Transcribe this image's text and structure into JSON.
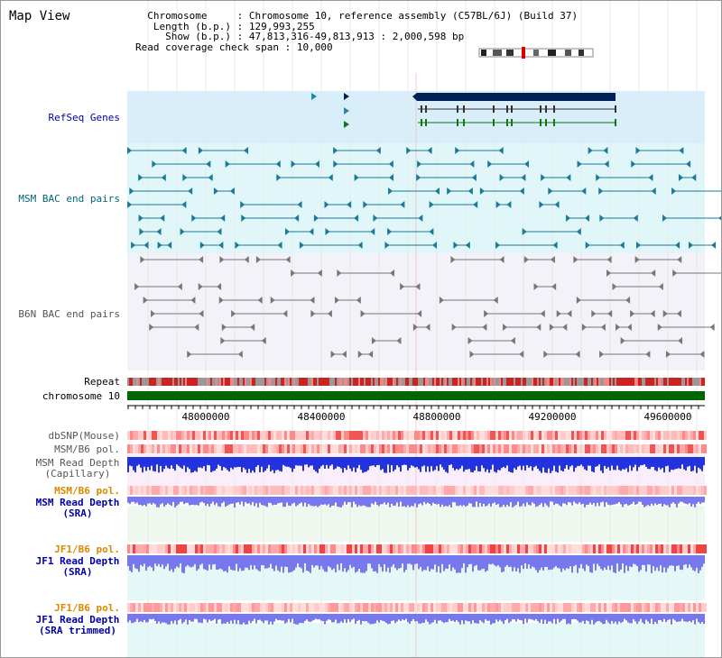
{
  "title": "Map View",
  "info": {
    "chromosome_label": "Chromosome",
    "chromosome_value": "Chromosome 10, reference assembly (C57BL/6J) (Build 37)",
    "length_label": "Length (b.p.)",
    "length_value": "129,993,255",
    "show_label": "Show (b.p.)",
    "show_value": "47,813,316-49,813,913 : 2,000,598 bp",
    "read_label": "Read coverage check span",
    "read_value": "10,000"
  },
  "tracks": {
    "refseq": "RefSeq Genes",
    "msm_bac": "MSM BAC end pairs",
    "b6n_bac": "B6N BAC end pairs",
    "repeat": "Repeat",
    "chromosome": "chromosome 10",
    "dbsnp": "dbSNP(Mouse)",
    "msm_pol1": "MSM/B6 pol.",
    "msm_depth_cap_1": "MSM Read Depth",
    "msm_depth_cap_2": "(Capillary)",
    "msm_pol2": "MSM/B6 pol.",
    "msm_depth_sra_1": "MSM Read Depth",
    "msm_depth_sra_2": "(SRA)",
    "jf1_pol1": "JF1/B6 pol.",
    "jf1_depth_sra_1": "JF1 Read Depth",
    "jf1_depth_sra_2": "(SRA)",
    "jf1_pol2": "JF1/B6 pol.",
    "jf1_depth_trim_1": "JF1 Read Depth",
    "jf1_depth_trim_2": "(SRA trimmed)"
  },
  "axis_ticks": [
    "48000000",
    "48400000",
    "48800000",
    "49200000",
    "49600000"
  ],
  "colors": {
    "label_blue": "#0000aa",
    "label_teal": "#006677",
    "label_gray": "#555555",
    "label_orange": "#dd8800",
    "refseq_bg": "#d8eefa",
    "msm_bac_bg": "#e0f6f8",
    "chromosome_bar": "#006600",
    "depth_blue": "#2233dd",
    "depth_light": "#7777ee"
  }
}
